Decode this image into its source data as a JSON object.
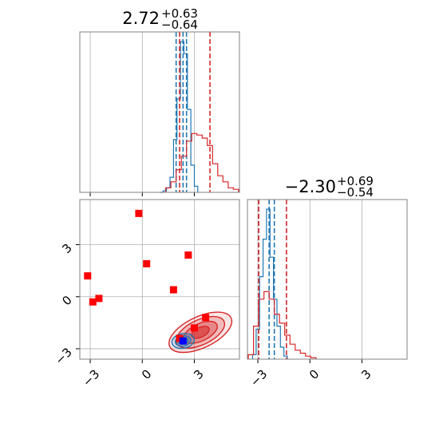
{
  "chart_data": [
    {
      "type": "histogram",
      "panel": "top-left",
      "parameter": "x",
      "title": {
        "value": "2.72",
        "plus": "+0.63",
        "minus": "−0.64"
      },
      "xlim": [
        -3.6,
        5.6
      ],
      "grid": true,
      "series": [
        {
          "name": "",
          "color": "#1f77b4",
          "bin_centers": [
            1.1,
            1.3,
            1.5,
            1.7,
            1.9,
            2.1,
            2.3,
            2.5,
            2.7,
            2.9,
            3.1
          ],
          "heights": [
            0.0,
            0.01,
            0.03,
            0.1,
            0.35,
            0.62,
            1.0,
            0.92,
            0.55,
            0.18,
            0.04
          ],
          "quantiles": [
            1.95,
            2.35,
            2.55
          ]
        },
        {
          "name": "",
          "color": "#d62728",
          "bin_centers": [
            1.5,
            1.8,
            2.1,
            2.4,
            2.7,
            3.0,
            3.3,
            3.6,
            3.9,
            4.2,
            4.5,
            4.8,
            5.1,
            5.4
          ],
          "heights": [
            0.03,
            0.07,
            0.15,
            0.24,
            0.34,
            0.39,
            0.38,
            0.36,
            0.31,
            0.19,
            0.11,
            0.07,
            0.03,
            0.02
          ],
          "quantiles": [
            2.15,
            3.9
          ]
        }
      ]
    },
    {
      "type": "histogram",
      "panel": "bottom-right",
      "parameter": "y",
      "title": {
        "value": "−2.30",
        "plus": "+0.69",
        "minus": "−0.54"
      },
      "xlim": [
        -3.6,
        5.6
      ],
      "xticks": [
        -3,
        0,
        3
      ],
      "xtick_labels": [
        "−3",
        "0",
        "3"
      ],
      "grid": true,
      "series": [
        {
          "name": "",
          "color": "#1f77b4",
          "bin_centers": [
            -3.2,
            -3.0,
            -2.8,
            -2.6,
            -2.4,
            -2.2,
            -2.0,
            -1.8,
            -1.6,
            -1.4
          ],
          "heights": [
            0.03,
            0.2,
            0.55,
            0.8,
            1.0,
            0.68,
            0.4,
            0.22,
            0.08,
            0.02
          ],
          "quantiles": [
            -2.95,
            -2.35,
            -2.05
          ]
        },
        {
          "name": "",
          "color": "#d62728",
          "bin_centers": [
            -3.4,
            -3.1,
            -2.8,
            -2.5,
            -2.2,
            -1.9,
            -1.6,
            -1.3,
            -1.0,
            -0.7,
            -0.4,
            -0.1,
            0.2
          ],
          "heights": [
            0.03,
            0.22,
            0.4,
            0.45,
            0.4,
            0.3,
            0.24,
            0.16,
            0.1,
            0.06,
            0.04,
            0.02,
            0.01
          ],
          "quantiles": [
            -2.95,
            -1.35
          ]
        }
      ]
    },
    {
      "type": "scatter",
      "panel": "bottom-left",
      "xlim": [
        -3.6,
        5.6
      ],
      "ylim": [
        -3.6,
        5.6
      ],
      "xticks": [
        -3,
        0,
        3
      ],
      "xtick_labels": [
        "−3",
        "0",
        "3"
      ],
      "yticks": [
        -3,
        0,
        3
      ],
      "ytick_labels": [
        "−3",
        "0",
        "3"
      ],
      "grid": true,
      "contours": [
        {
          "color": "#d62728",
          "cx": 3.35,
          "cy": -2.05,
          "rx": [
            1.95,
            1.5,
            1.05,
            0.55
          ],
          "ry": [
            0.9,
            0.72,
            0.5,
            0.28
          ],
          "angle_deg": 25
        },
        {
          "color": "#1f77b4",
          "cx": 2.35,
          "cy": -2.55,
          "rx": [
            0.65,
            0.45,
            0.28
          ],
          "ry": [
            0.42,
            0.3,
            0.18
          ],
          "angle_deg": 10
        }
      ],
      "points": {
        "color": "#ff0000",
        "x": [
          -0.2,
          -3.15,
          -2.85,
          -2.5,
          0.25,
          2.65,
          1.8,
          3.65,
          3.0,
          2.15
        ],
        "y": [
          4.8,
          1.2,
          -0.3,
          -0.1,
          1.9,
          2.4,
          0.4,
          -1.2,
          -1.8,
          -2.4
        ]
      },
      "marker": {
        "color": "#0000ff",
        "x": 2.35,
        "y": -2.55
      }
    }
  ]
}
